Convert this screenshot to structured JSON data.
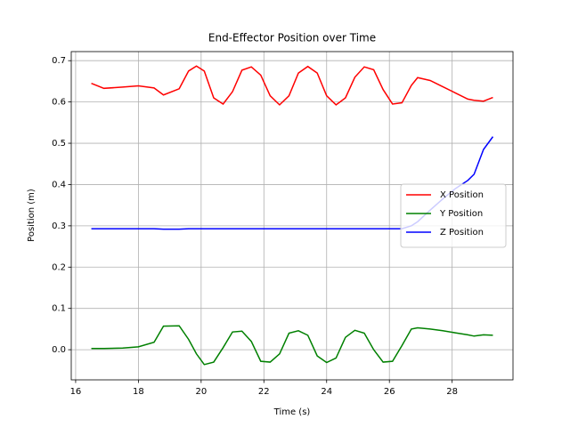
{
  "chart_data": {
    "type": "line",
    "title": "End-Effector Position over Time",
    "x_label": "Time (s)",
    "y_label": "Position (m)",
    "x": [
      16.5,
      16.9,
      17.5,
      18.0,
      18.5,
      18.8,
      19.3,
      19.6,
      19.85,
      20.1,
      20.4,
      20.7,
      21.0,
      21.3,
      21.6,
      21.9,
      22.2,
      22.5,
      22.8,
      23.1,
      23.4,
      23.7,
      24.0,
      24.3,
      24.6,
      24.9,
      25.2,
      25.5,
      25.8,
      26.1,
      26.4,
      26.7,
      26.9,
      27.3,
      27.7,
      28.1,
      28.5,
      28.7,
      29.0,
      29.3
    ],
    "series": [
      {
        "name": "X Position",
        "color": "#ff0000",
        "values": [
          0.645,
          0.633,
          0.636,
          0.639,
          0.634,
          0.617,
          0.632,
          0.675,
          0.687,
          0.675,
          0.61,
          0.595,
          0.625,
          0.677,
          0.685,
          0.665,
          0.615,
          0.593,
          0.615,
          0.67,
          0.686,
          0.67,
          0.615,
          0.593,
          0.61,
          0.66,
          0.685,
          0.678,
          0.63,
          0.595,
          0.598,
          0.64,
          0.659,
          0.652,
          0.637,
          0.622,
          0.607,
          0.604,
          0.602,
          0.611
        ]
      },
      {
        "name": "Y Position",
        "color": "#008000",
        "values": [
          0.003,
          0.003,
          0.004,
          0.007,
          0.018,
          0.057,
          0.058,
          0.025,
          -0.01,
          -0.036,
          -0.03,
          0.005,
          0.043,
          0.045,
          0.02,
          -0.028,
          -0.03,
          -0.01,
          0.04,
          0.046,
          0.035,
          -0.015,
          -0.031,
          -0.02,
          0.03,
          0.047,
          0.04,
          0.0,
          -0.03,
          -0.028,
          0.01,
          0.05,
          0.053,
          0.05,
          0.046,
          0.041,
          0.036,
          0.033,
          0.036,
          0.035
        ]
      },
      {
        "name": "Z Position",
        "color": "#0000ff",
        "values": [
          0.293,
          0.293,
          0.293,
          0.293,
          0.293,
          0.292,
          0.292,
          0.293,
          0.293,
          0.293,
          0.293,
          0.293,
          0.293,
          0.293,
          0.293,
          0.293,
          0.293,
          0.293,
          0.293,
          0.293,
          0.293,
          0.293,
          0.293,
          0.293,
          0.293,
          0.293,
          0.293,
          0.293,
          0.293,
          0.293,
          0.293,
          0.3,
          0.31,
          0.338,
          0.365,
          0.39,
          0.41,
          0.425,
          0.485,
          0.516
        ]
      }
    ],
    "xlim": [
      15.86,
      29.94
    ],
    "xticks": [
      16,
      18,
      20,
      22,
      24,
      26,
      28
    ],
    "ylim": [
      -0.073,
      0.722
    ],
    "yticks": [
      {
        "value": 0,
        "label": "0.0"
      },
      0.1,
      0.2,
      0.3,
      0.4,
      0.5,
      0.6,
      0.7
    ],
    "grid": true,
    "legend": "center right"
  }
}
